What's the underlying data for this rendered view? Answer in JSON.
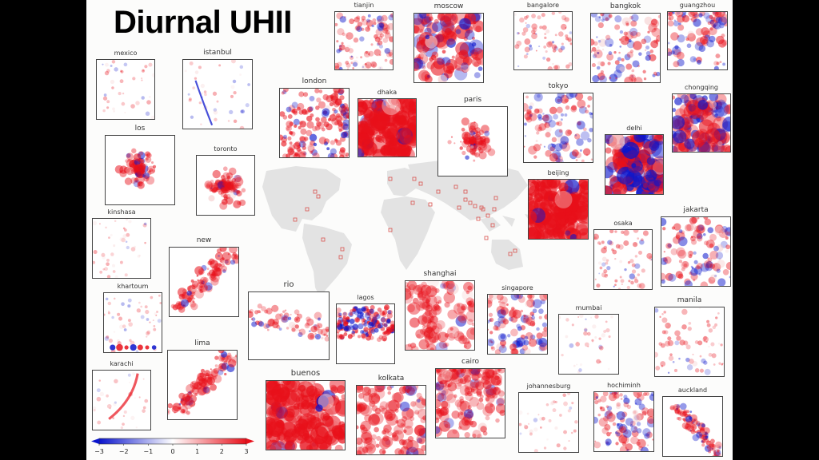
{
  "title": "Diurnal UHII",
  "colors": {
    "negative": "#0a14cc",
    "neutral": "#ffffff",
    "positive": "#e8101a",
    "map_land": "#e3e3e3",
    "marker": "#d9534f"
  },
  "colorbar": {
    "min": -3,
    "max": 3,
    "ticks": [
      "−3",
      "−2",
      "−1",
      "0",
      "1",
      "2",
      "3"
    ]
  },
  "cities": [
    {
      "name": "tianjin",
      "pattern": "mixed-red"
    },
    {
      "name": "moscow",
      "pattern": "red-blue-strong"
    },
    {
      "name": "bangalore",
      "pattern": "light-red"
    },
    {
      "name": "bangkok",
      "pattern": "red-blue"
    },
    {
      "name": "guangzhou",
      "pattern": "red-blue-top"
    },
    {
      "name": "mexico",
      "pattern": "light"
    },
    {
      "name": "istanbul",
      "pattern": "light-blue-line"
    },
    {
      "name": "london",
      "pattern": "red-dots"
    },
    {
      "name": "dhaka",
      "pattern": "solid-red"
    },
    {
      "name": "paris",
      "pattern": "red-center"
    },
    {
      "name": "tokyo",
      "pattern": "red-blue"
    },
    {
      "name": "chongqing",
      "pattern": "red-blue-strong"
    },
    {
      "name": "los",
      "pattern": "red-center"
    },
    {
      "name": "toronto",
      "pattern": "red-center"
    },
    {
      "name": "delhi",
      "pattern": "blue-red-strong"
    },
    {
      "name": "beijing",
      "pattern": "solid-red"
    },
    {
      "name": "kinshasa",
      "pattern": "light"
    },
    {
      "name": "new",
      "pattern": "red-diagonal"
    },
    {
      "name": "osaka",
      "pattern": "light-red"
    },
    {
      "name": "jakarta",
      "pattern": "red-blue"
    },
    {
      "name": "khartoum",
      "pattern": "light-bottom-red"
    },
    {
      "name": "rio",
      "pattern": "red-line"
    },
    {
      "name": "lagos",
      "pattern": "red-blue-dots"
    },
    {
      "name": "shanghai",
      "pattern": "red"
    },
    {
      "name": "singapore",
      "pattern": "red-blue"
    },
    {
      "name": "mumbai",
      "pattern": "light"
    },
    {
      "name": "manila",
      "pattern": "light-red"
    },
    {
      "name": "lima",
      "pattern": "red-diagonal"
    },
    {
      "name": "karachi",
      "pattern": "red-arc"
    },
    {
      "name": "buenos",
      "pattern": "solid-red"
    },
    {
      "name": "kolkata",
      "pattern": "red"
    },
    {
      "name": "cairo",
      "pattern": "red-top"
    },
    {
      "name": "johannesburg",
      "pattern": "light"
    },
    {
      "name": "hochiminh",
      "pattern": "red-blue"
    },
    {
      "name": "auckland",
      "pattern": "red-blue-right"
    }
  ]
}
